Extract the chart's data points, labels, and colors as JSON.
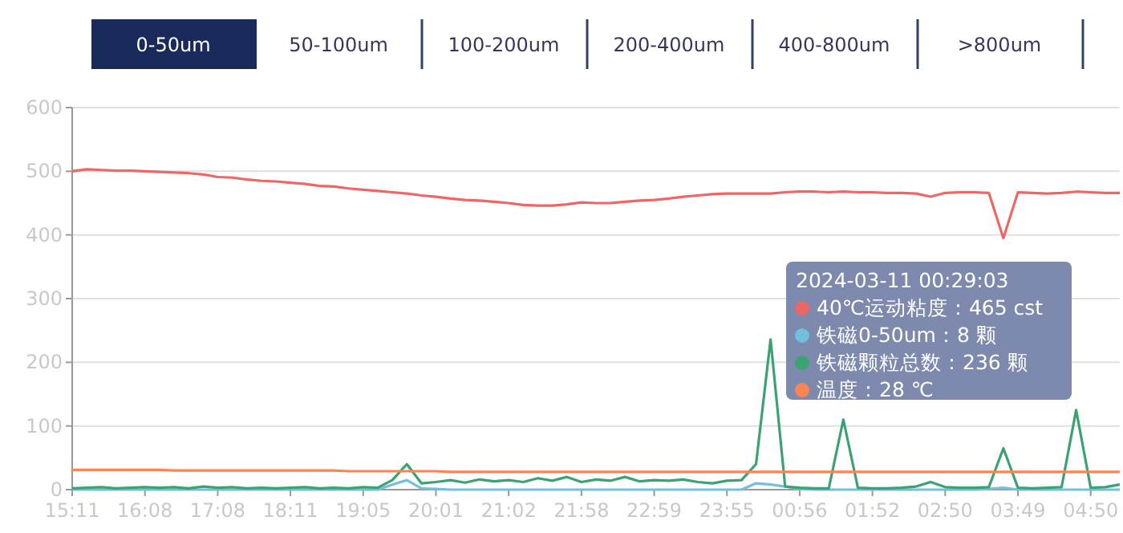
{
  "chart_data": {
    "type": "line",
    "annotations": [
      "0-50um",
      "50-100um",
      "100-200um",
      "200-400um",
      "400-800um",
      ">800um",
      "2024-03-11 00:29:03",
      "40℃运动粘度：465 cst",
      "铁磁0-50um：8 颗",
      "铁磁颗粒总数：236 颗",
      "温度：28 ℃"
    ],
    "categories": [
      "15:11",
      null,
      null,
      null,
      null,
      "16:08",
      null,
      null,
      null,
      null,
      "17:08",
      null,
      null,
      null,
      null,
      "18:11",
      null,
      null,
      null,
      null,
      "19:05",
      null,
      null,
      null,
      null,
      "20:01",
      null,
      null,
      null,
      null,
      "21:02",
      null,
      null,
      null,
      null,
      "21:58",
      null,
      null,
      null,
      null,
      "22:59",
      null,
      null,
      null,
      null,
      "23:55",
      null,
      null,
      null,
      null,
      "00:56",
      null,
      null,
      null,
      null,
      "01:52",
      null,
      null,
      null,
      null,
      "02:50",
      null,
      null,
      null,
      null,
      "03:49",
      null,
      null,
      null,
      null,
      "04:50",
      null,
      null
    ],
    "ylim": [
      0,
      600
    ],
    "yticks": [
      0,
      100,
      200,
      300,
      400,
      500,
      600
    ],
    "grid": "y",
    "marker": "none",
    "series": [
      {
        "color": "#ee6666",
        "values": [
          500,
          503,
          502,
          501,
          501,
          500,
          499,
          498,
          497,
          495,
          491,
          490,
          487,
          485,
          484,
          482,
          480,
          477,
          476,
          473,
          471,
          469,
          467,
          465,
          462,
          460,
          457,
          455,
          454,
          452,
          450,
          447,
          446,
          446,
          448,
          451,
          450,
          450,
          452,
          454,
          455,
          457,
          460,
          462,
          464,
          465,
          465,
          465,
          465,
          467,
          468,
          468,
          467,
          468,
          467,
          467,
          466,
          466,
          465,
          460,
          466,
          467,
          467,
          466,
          395,
          467,
          466,
          465,
          466,
          468,
          467,
          466,
          466
        ]
      },
      {
        "color": "#73c0de",
        "values": [
          0,
          0,
          0,
          0,
          0,
          0,
          0,
          0,
          0,
          0,
          0,
          0,
          0,
          0,
          0,
          0,
          0,
          0,
          0,
          0,
          0,
          0,
          8,
          15,
          2,
          1,
          0,
          0,
          0,
          0,
          0,
          0,
          0,
          0,
          0,
          0,
          0,
          0,
          0,
          0,
          0,
          0,
          0,
          0,
          0,
          0,
          0,
          10,
          8,
          5,
          1,
          0,
          0,
          0,
          0,
          0,
          0,
          0,
          0,
          0,
          0,
          0,
          0,
          1,
          3,
          0,
          0,
          0,
          0,
          0,
          0,
          0,
          0
        ]
      },
      {
        "color": "#3ba272",
        "values": [
          2,
          3,
          4,
          2,
          3,
          4,
          3,
          4,
          2,
          5,
          3,
          4,
          2,
          3,
          2,
          3,
          4,
          2,
          3,
          2,
          4,
          3,
          15,
          40,
          10,
          12,
          15,
          11,
          16,
          13,
          15,
          12,
          18,
          14,
          20,
          12,
          16,
          14,
          20,
          13,
          15,
          14,
          16,
          12,
          10,
          14,
          15,
          40,
          236,
          5,
          3,
          2,
          2,
          110,
          3,
          2,
          2,
          3,
          5,
          12,
          4,
          3,
          3,
          4,
          65,
          3,
          2,
          3,
          4,
          125,
          3,
          4,
          8
        ]
      },
      {
        "color": "#fc8452",
        "values": [
          31,
          31,
          31,
          31,
          31,
          31,
          31,
          30,
          30,
          30,
          30,
          30,
          30,
          30,
          30,
          30,
          30,
          30,
          30,
          29,
          29,
          29,
          29,
          29,
          29,
          29,
          28,
          28,
          28,
          28,
          28,
          28,
          28,
          28,
          28,
          28,
          28,
          28,
          28,
          28,
          28,
          28,
          28,
          28,
          28,
          28,
          28,
          28,
          28,
          28,
          28,
          28,
          28,
          28,
          28,
          28,
          28,
          28,
          28,
          28,
          28,
          28,
          28,
          28,
          28,
          28,
          28,
          28,
          28,
          28,
          28,
          28,
          28
        ]
      }
    ]
  }
}
